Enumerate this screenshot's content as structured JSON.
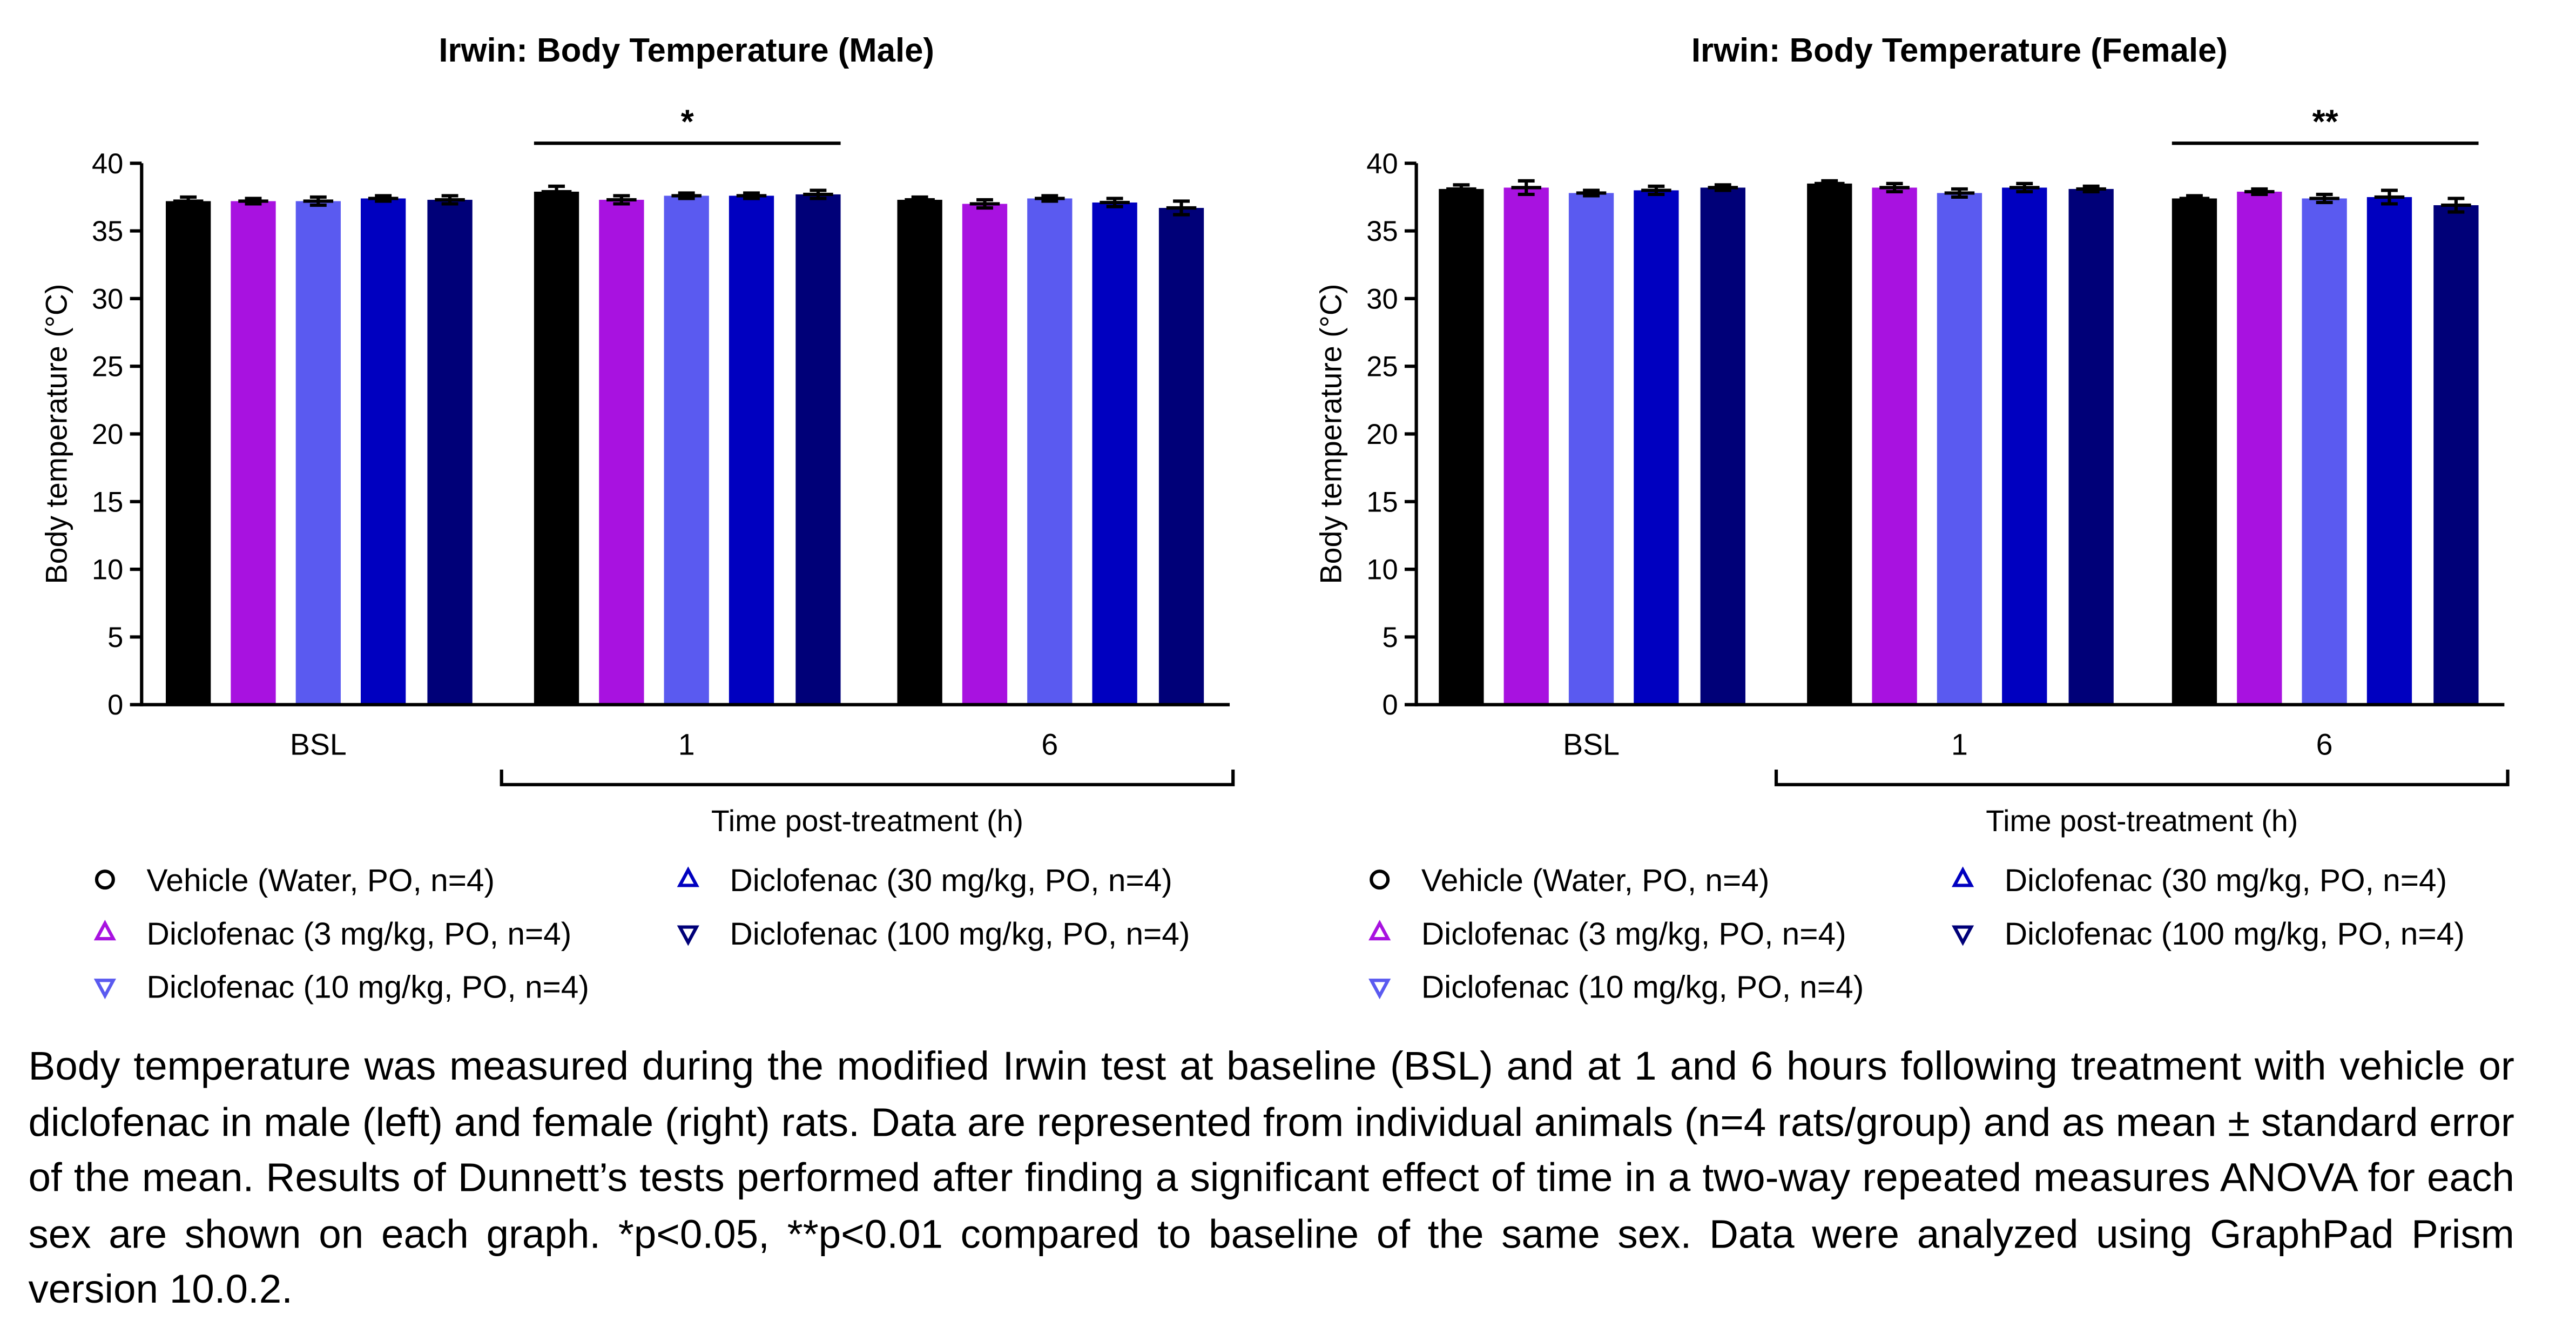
{
  "chart_data": [
    {
      "type": "bar",
      "title": "Irwin: Body Temperature (Male)",
      "x_label": "Time post-treatment (h)",
      "y_label": "Body temperature (°C)",
      "categories": [
        "BSL",
        "1",
        "6"
      ],
      "ylim": [
        0,
        40
      ],
      "yticks": [
        0,
        5,
        10,
        15,
        20,
        25,
        30,
        35,
        40
      ],
      "series": [
        {
          "name": "Vehicle (Water, PO, n=4)",
          "color": "#000000",
          "marker": "circle",
          "values": [
            37.2,
            37.9,
            37.3
          ],
          "errors": [
            0.3,
            0.4,
            0.2
          ]
        },
        {
          "name": "Diclofenac (3 mg/kg, PO, n=4)",
          "color": "#a812e0",
          "marker": "triangle-up",
          "values": [
            37.2,
            37.3,
            37.0
          ],
          "errors": [
            0.2,
            0.3,
            0.3
          ]
        },
        {
          "name": "Diclofenac (10 mg/kg, PO, n=4)",
          "color": "#5a5af0",
          "marker": "triangle-down",
          "values": [
            37.2,
            37.6,
            37.4
          ],
          "errors": [
            0.3,
            0.2,
            0.2
          ]
        },
        {
          "name": "Diclofenac (30 mg/kg, PO, n=4)",
          "color": "#0000c0",
          "marker": "triangle-up",
          "values": [
            37.4,
            37.6,
            37.1
          ],
          "errors": [
            0.2,
            0.2,
            0.3
          ]
        },
        {
          "name": "Diclofenac (100 mg/kg, PO, n=4)",
          "color": "#000078",
          "marker": "triangle-down",
          "values": [
            37.3,
            37.7,
            36.7
          ],
          "errors": [
            0.3,
            0.3,
            0.5
          ]
        }
      ],
      "annotations": [
        {
          "text": "*",
          "category": "1"
        }
      ]
    },
    {
      "type": "bar",
      "title": "Irwin: Body Temperature (Female)",
      "x_label": "Time post-treatment (h)",
      "y_label": "Body temperature (°C)",
      "categories": [
        "BSL",
        "1",
        "6"
      ],
      "ylim": [
        0,
        40
      ],
      "yticks": [
        0,
        5,
        10,
        15,
        20,
        25,
        30,
        35,
        40
      ],
      "series": [
        {
          "name": "Vehicle (Water, PO, n=4)",
          "color": "#000000",
          "marker": "circle",
          "values": [
            38.1,
            38.5,
            37.4
          ],
          "errors": [
            0.3,
            0.2,
            0.2
          ]
        },
        {
          "name": "Diclofenac (3 mg/kg, PO, n=4)",
          "color": "#a812e0",
          "marker": "triangle-up",
          "values": [
            38.2,
            38.2,
            37.9
          ],
          "errors": [
            0.5,
            0.3,
            0.2
          ]
        },
        {
          "name": "Diclofenac (10 mg/kg, PO, n=4)",
          "color": "#5a5af0",
          "marker": "triangle-down",
          "values": [
            37.8,
            37.8,
            37.4
          ],
          "errors": [
            0.2,
            0.3,
            0.3
          ]
        },
        {
          "name": "Diclofenac (30 mg/kg, PO, n=4)",
          "color": "#0000c0",
          "marker": "triangle-up",
          "values": [
            38.0,
            38.2,
            37.5
          ],
          "errors": [
            0.3,
            0.3,
            0.5
          ]
        },
        {
          "name": "Diclofenac (100 mg/kg, PO, n=4)",
          "color": "#000078",
          "marker": "triangle-down",
          "values": [
            38.2,
            38.1,
            36.9
          ],
          "errors": [
            0.2,
            0.2,
            0.5
          ]
        }
      ],
      "annotations": [
        {
          "text": "**",
          "category": "6"
        }
      ]
    }
  ],
  "caption": "Body temperature was measured during the modified Irwin test at baseline (BSL) and at 1 and 6 hours following treatment with vehicle or diclofenac in male (left) and female (right) rats. Data are represented from individual animals (n=4 rats/group) and as mean ± standard error of the mean. Results of Dunnett’s tests performed after finding a significant effect of time in a two-way repeated measures ANOVA for each sex are shown on each graph. *p<0.05, **p<0.01 compared to baseline of the same sex. Data were analyzed using GraphPad Prism version 10.0.2."
}
